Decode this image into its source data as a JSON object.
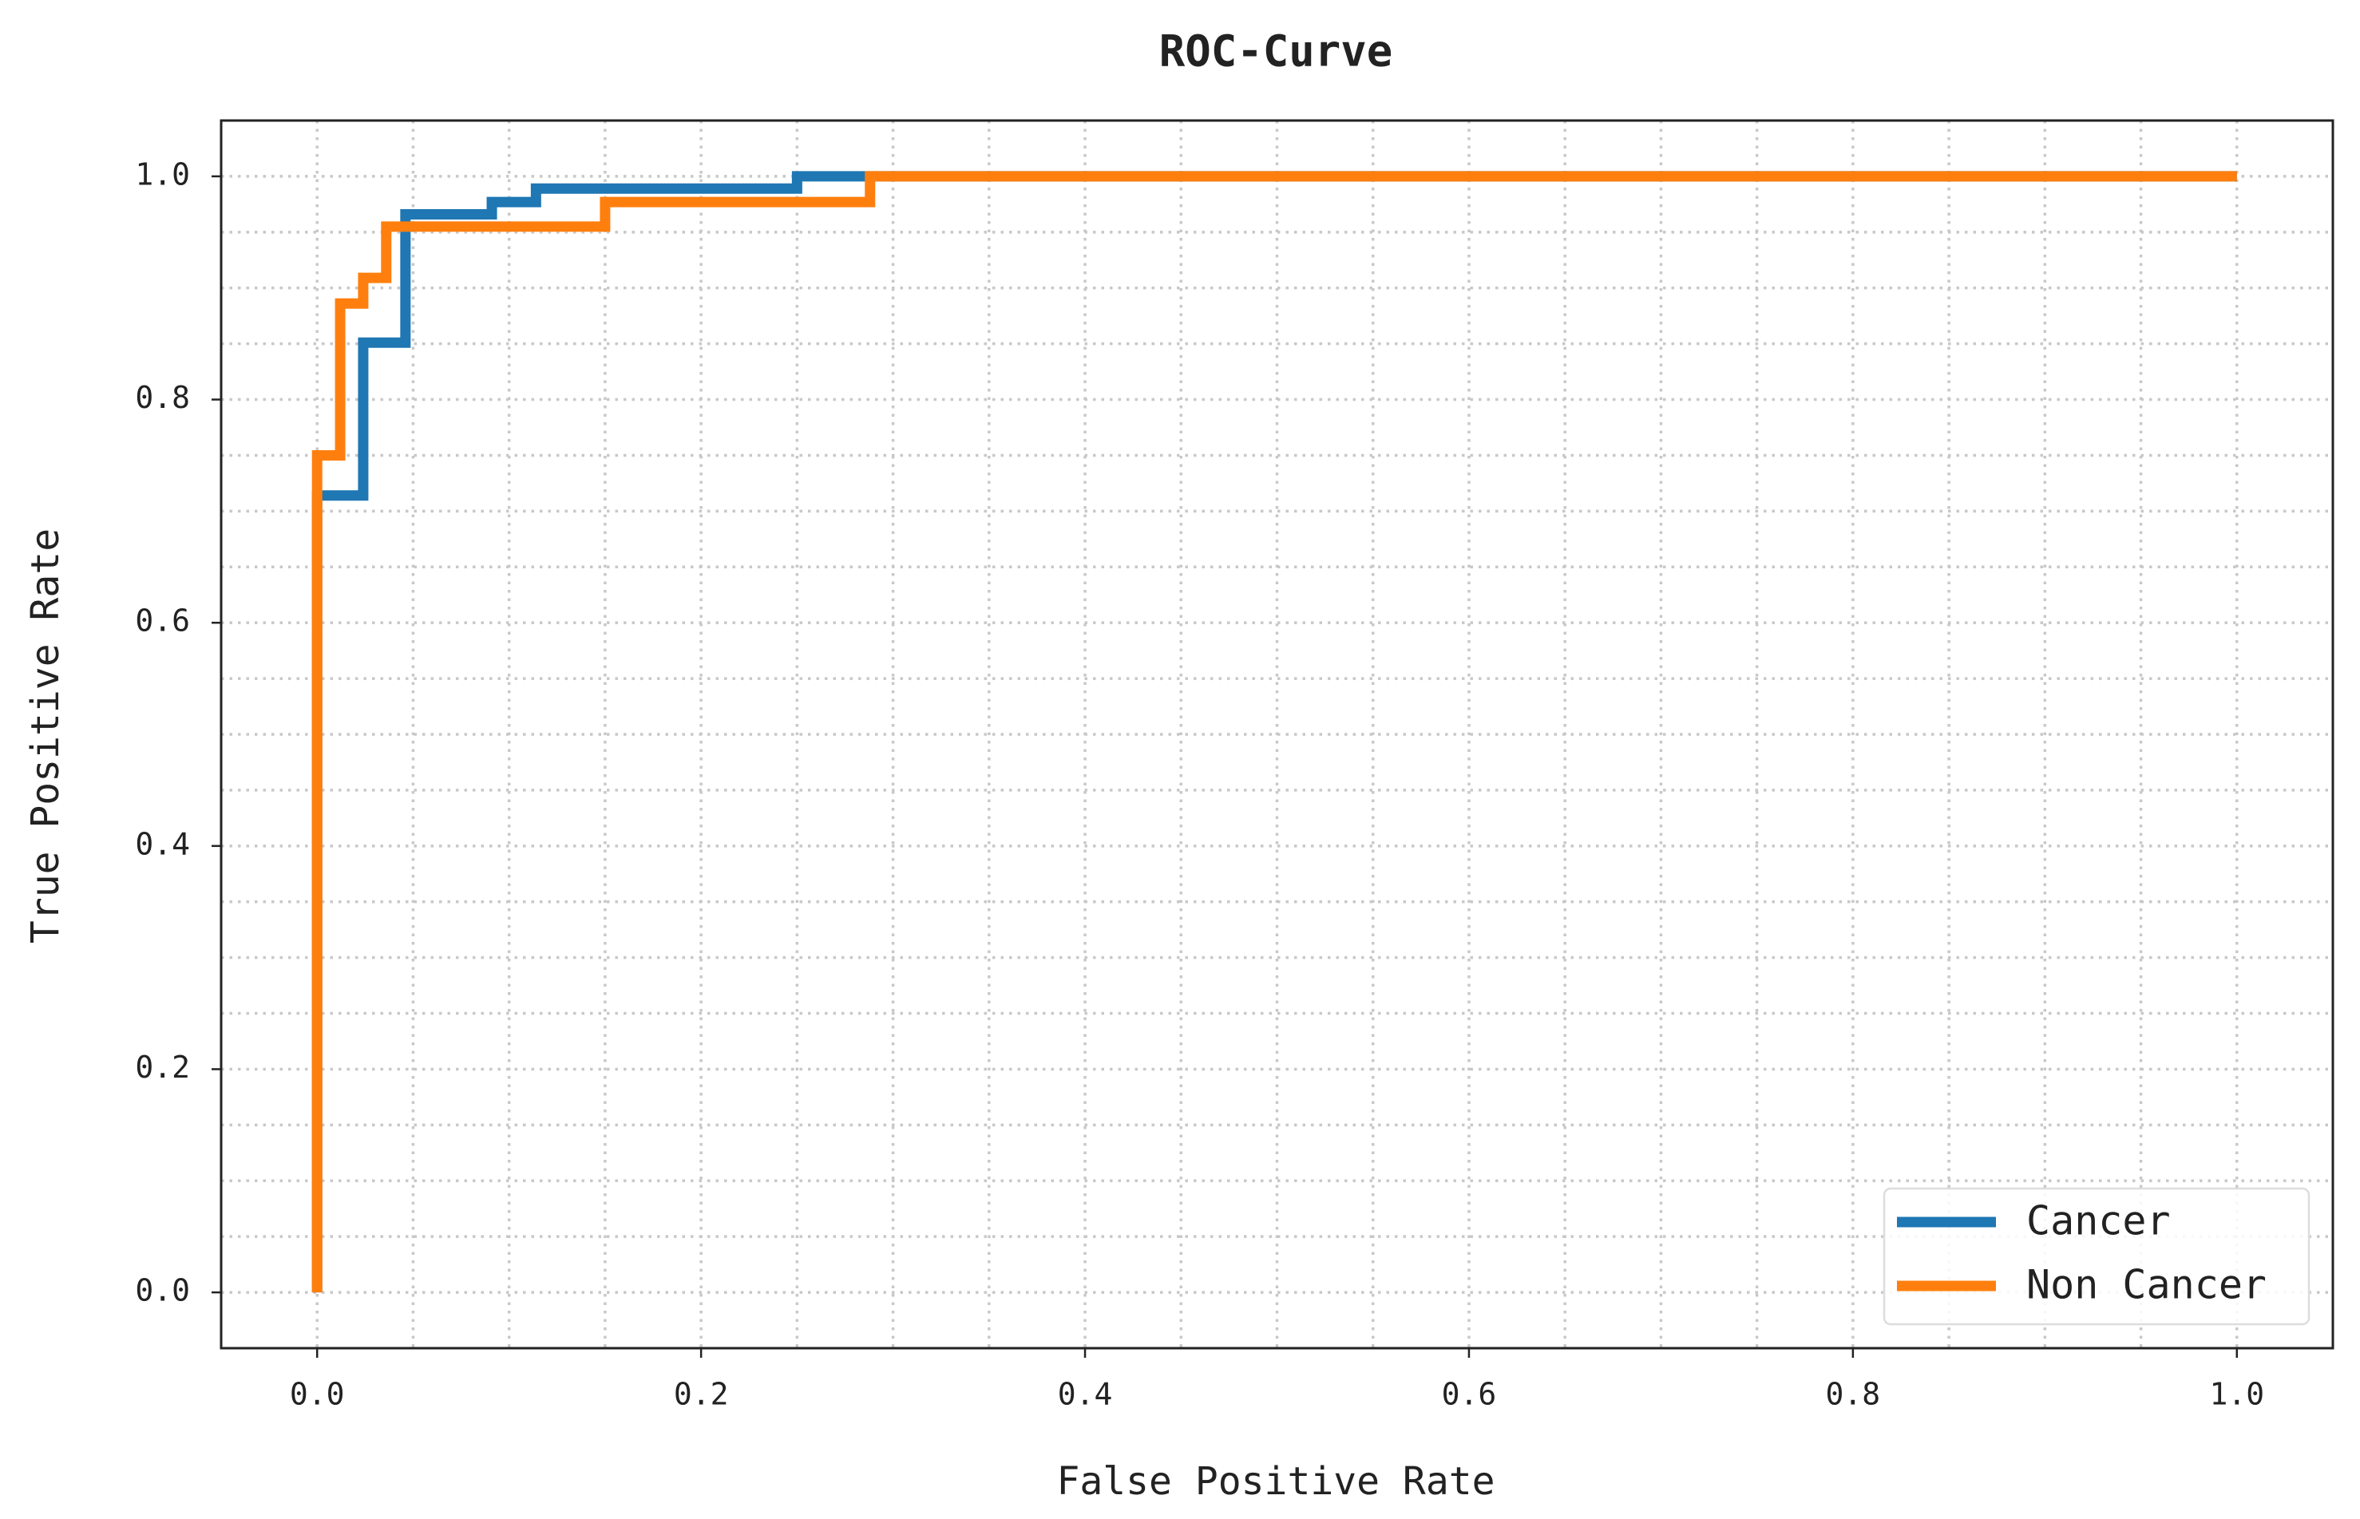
{
  "chart_data": {
    "type": "line",
    "title": "ROC-Curve",
    "x_label": "False Positive Rate",
    "y_label": "True Positive Rate",
    "series": [
      {
        "name": "Cancer",
        "color": "#1f77b4",
        "x": [
          0,
          0,
          0.024,
          0.024,
          0.046,
          0.046,
          0.091,
          0.091,
          0.114,
          0.114,
          0.25,
          0.25,
          1.0
        ],
        "values": [
          0,
          0.714,
          0.714,
          0.851,
          0.851,
          0.966,
          0.966,
          0.977,
          0.977,
          0.989,
          0.989,
          1.0,
          1.0
        ]
      },
      {
        "name": "Non Cancer",
        "color": "#ff7f0e",
        "x": [
          0,
          0,
          0.012,
          0.012,
          0.024,
          0.024,
          0.036,
          0.036,
          0.15,
          0.15,
          0.288,
          0.288,
          1.0
        ],
        "values": [
          0,
          0.75,
          0.75,
          0.886,
          0.886,
          0.909,
          0.909,
          0.955,
          0.955,
          0.977,
          0.977,
          1.0,
          1.0
        ]
      }
    ],
    "xlim": [
      -0.05,
      1.05
    ],
    "ylim": [
      -0.05,
      1.05
    ],
    "xticks": [
      {
        "value": 0,
        "label": "0.0"
      },
      0.2,
      0.4,
      0.6,
      0.8,
      {
        "value": 1,
        "label": "1.0"
      }
    ],
    "yticks": [
      {
        "value": 0,
        "label": "0.0"
      },
      0.2,
      0.4,
      0.6,
      0.8,
      {
        "value": 1,
        "label": "1.0"
      }
    ],
    "grid": {
      "major": true,
      "minor_divisions": 4
    },
    "legend": "lower right"
  }
}
